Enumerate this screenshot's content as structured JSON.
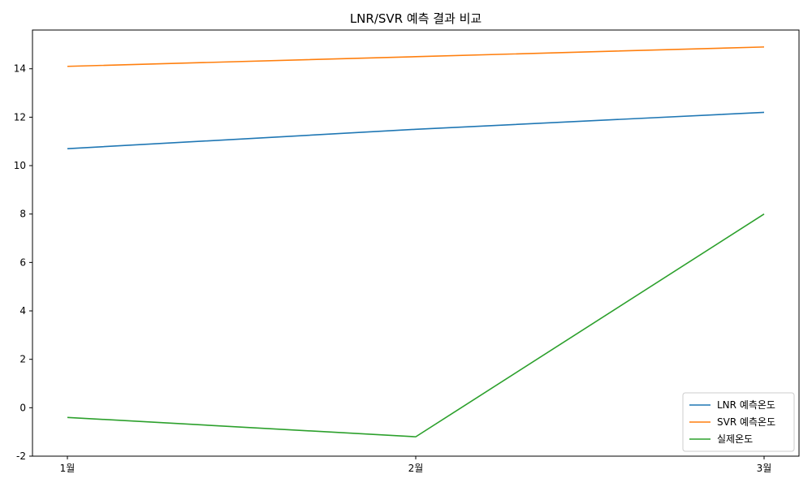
{
  "chart_data": {
    "type": "line",
    "title": "LNR/SVR 예측 결과 비교",
    "xlabel": "",
    "ylabel": "",
    "categories": [
      "1월",
      "2월",
      "3월"
    ],
    "ylim": [
      -2,
      15.6
    ],
    "yticks": [
      -2,
      0,
      2,
      4,
      6,
      8,
      10,
      12,
      14
    ],
    "grid": false,
    "legend_position": "lower-right",
    "series": [
      {
        "name": "LNR 예측온도",
        "color": "#1f77b4",
        "values": [
          10.7,
          11.5,
          12.2
        ]
      },
      {
        "name": "SVR 예측온도",
        "color": "#ff7f0e",
        "values": [
          14.1,
          14.5,
          14.9
        ]
      },
      {
        "name": "실제온도",
        "color": "#2ca02c",
        "values": [
          -0.4,
          -1.2,
          8.0
        ]
      }
    ]
  }
}
